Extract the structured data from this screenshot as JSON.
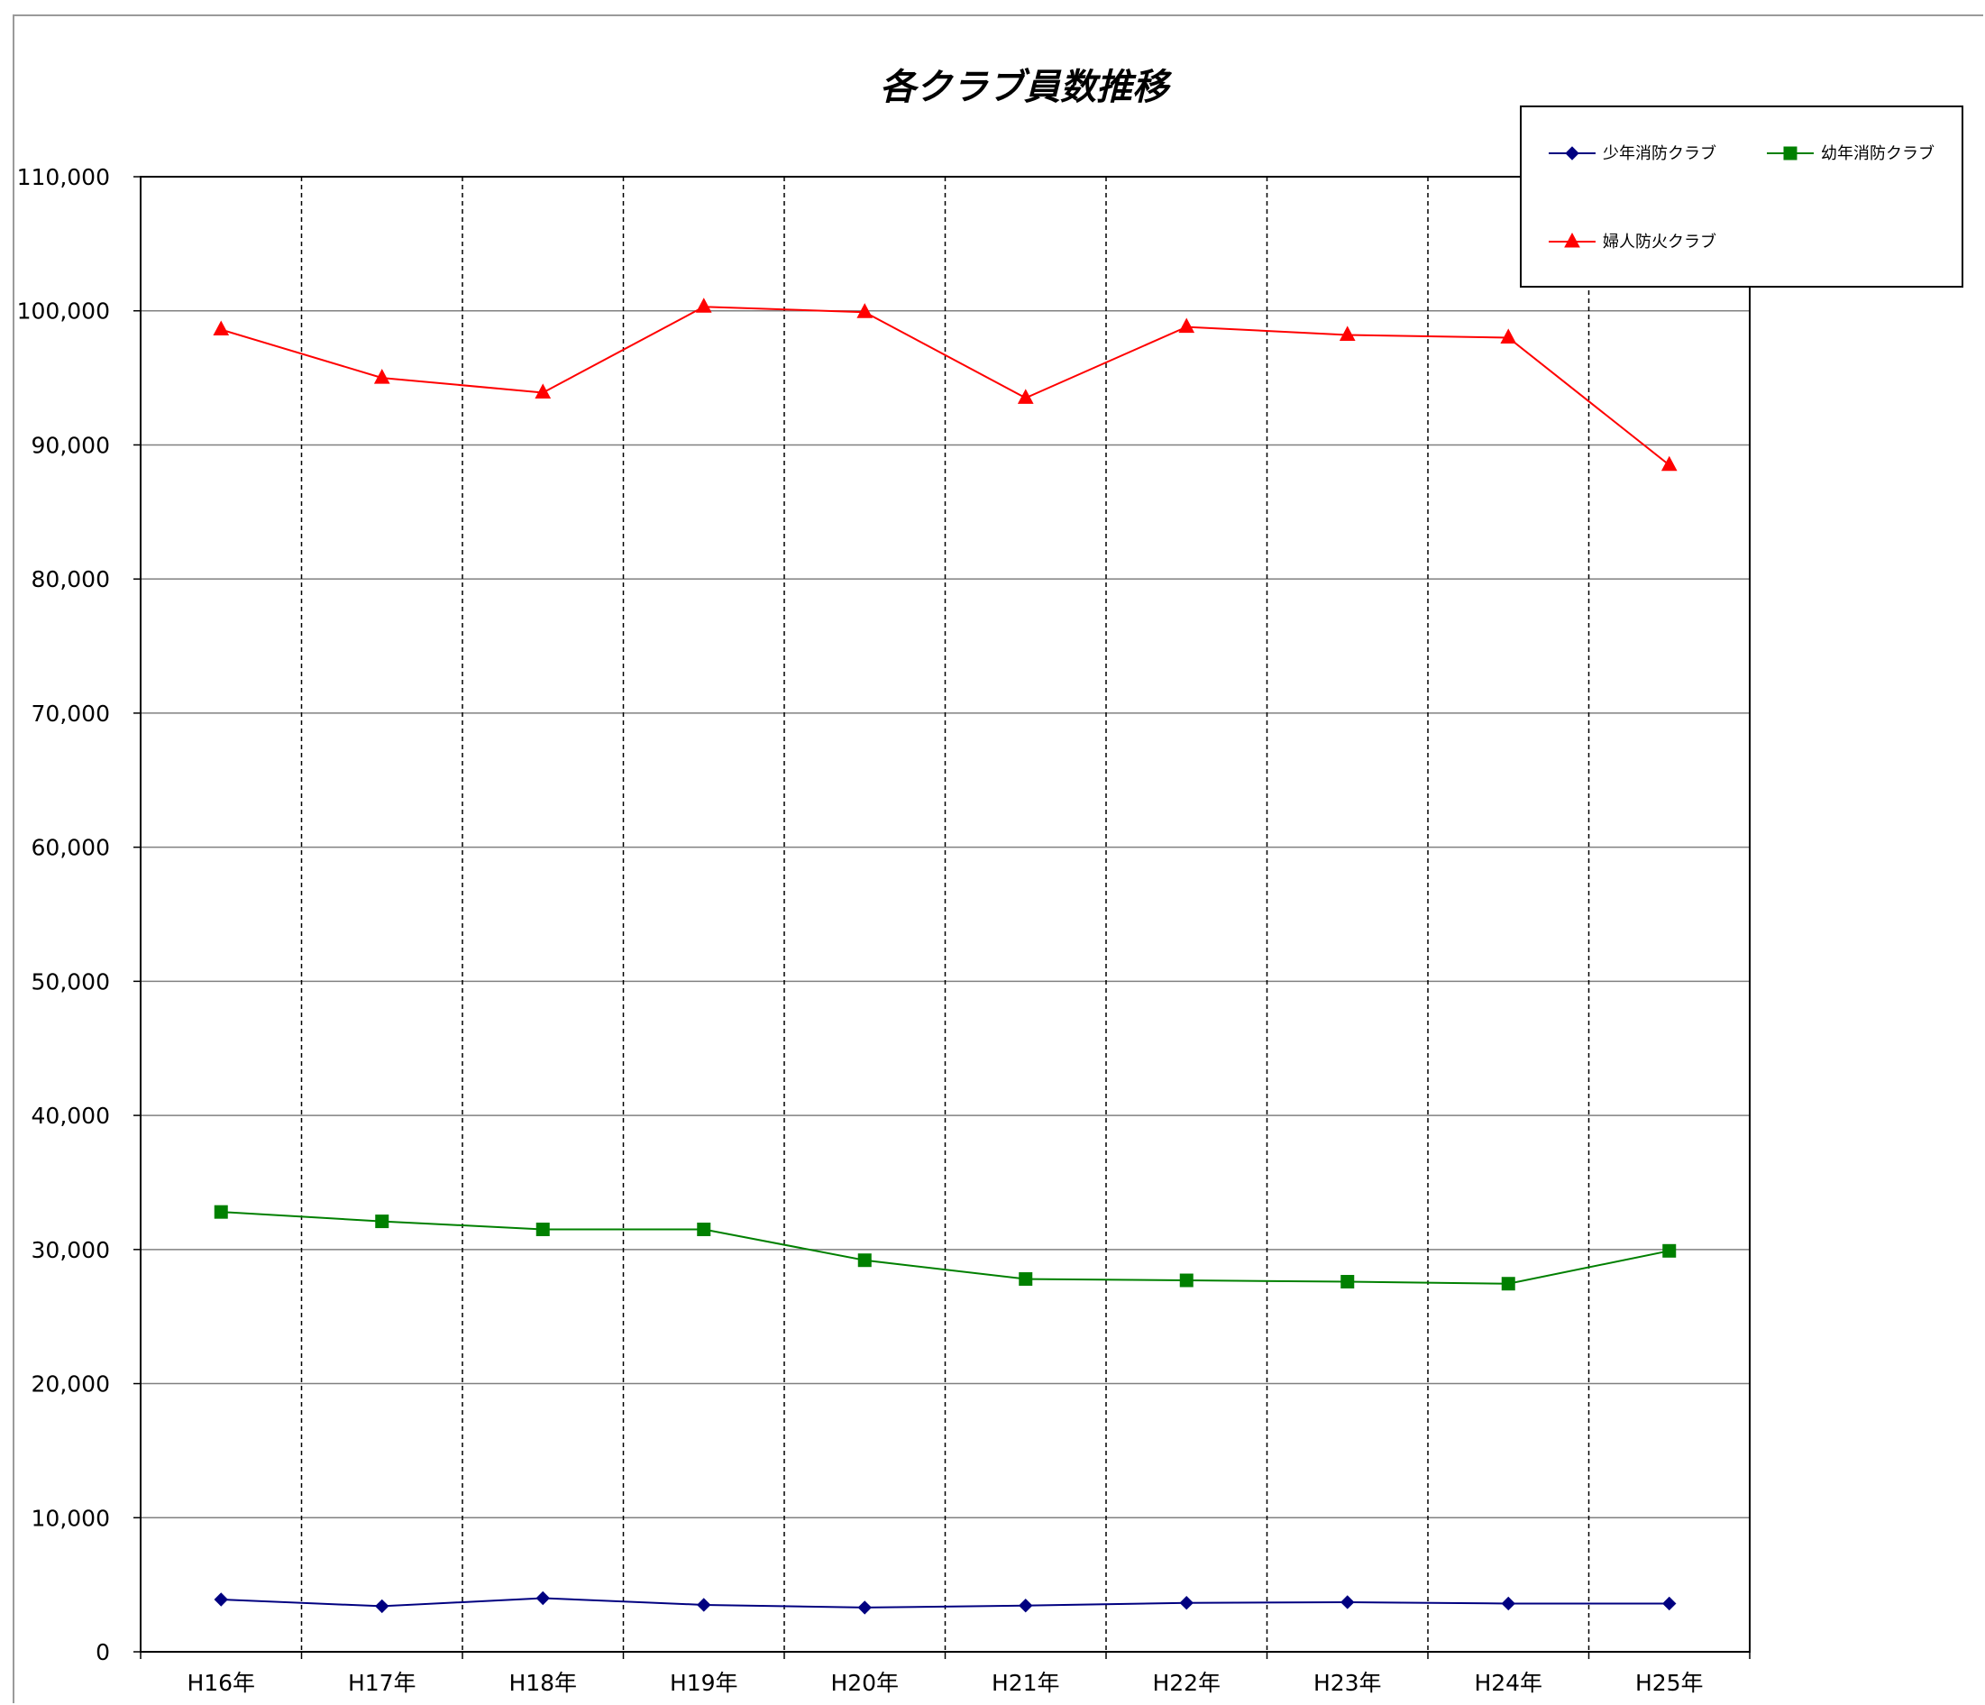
{
  "chart_data": {
    "type": "line",
    "title": "各クラブ員数推移",
    "xlabel": "",
    "ylabel": "",
    "categories": [
      "H16年",
      "H17年",
      "H18年",
      "H19年",
      "H20年",
      "H21年",
      "H22年",
      "H23年",
      "H24年",
      "H25年"
    ],
    "ylim": [
      0,
      110000
    ],
    "yticks": [
      0,
      10000,
      20000,
      30000,
      40000,
      50000,
      60000,
      70000,
      80000,
      90000,
      100000,
      110000
    ],
    "ytick_labels": [
      "0",
      "10,000",
      "20,000",
      "30,000",
      "40,000",
      "50,000",
      "60,000",
      "70,000",
      "80,000",
      "90,000",
      "100,000",
      "110,000"
    ],
    "grid": {
      "horizontal": "solid",
      "vertical": "dashed"
    },
    "legend_position": "top-right",
    "series": [
      {
        "name": "少年消防クラブ",
        "color": "#000080",
        "marker": "diamond",
        "values": [
          3900,
          3400,
          4000,
          3500,
          3300,
          3450,
          3650,
          3700,
          3600,
          3600
        ]
      },
      {
        "name": "幼年消防クラブ",
        "color": "#008000",
        "marker": "square",
        "values": [
          32800,
          32100,
          31500,
          31500,
          29200,
          27800,
          27700,
          27600,
          27450,
          29900
        ]
      },
      {
        "name": "婦人防火クラブ",
        "color": "#ff0000",
        "marker": "triangle",
        "values": [
          98600,
          95000,
          93900,
          100300,
          99900,
          93500,
          98800,
          98200,
          98000,
          88500
        ]
      }
    ]
  }
}
